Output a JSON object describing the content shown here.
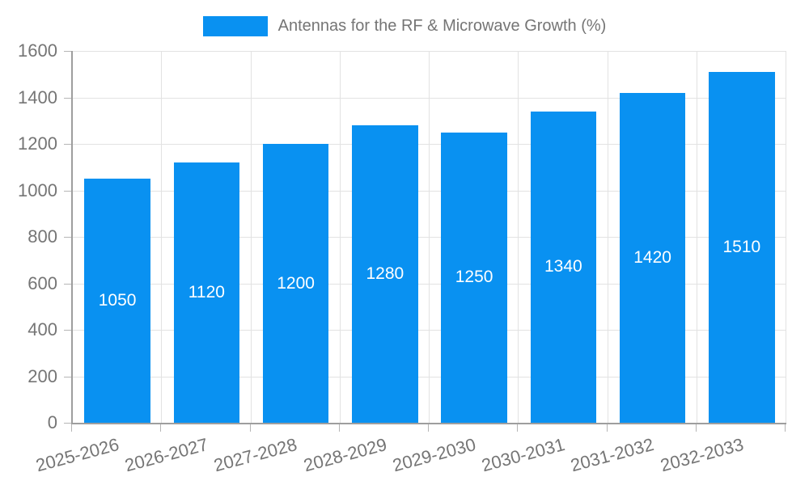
{
  "chart_data": {
    "type": "bar",
    "title": "Antennas for the RF & Microwave Growth (%)",
    "categories": [
      "2025-2026",
      "2026-2027",
      "2027-2028",
      "2028-2029",
      "2029-2030",
      "2030-2031",
      "2031-2032",
      "2032-2033"
    ],
    "values": [
      1050,
      1120,
      1200,
      1280,
      1250,
      1340,
      1420,
      1510
    ],
    "xlabel": "",
    "ylabel": "",
    "ylim": [
      0,
      1600
    ],
    "yticks": [
      0,
      200,
      400,
      600,
      800,
      1000,
      1200,
      1400,
      1600
    ],
    "grid": true,
    "legend_position": "top-center",
    "x_label_rotation_deg": -15,
    "colors": {
      "bar": "#0991f1",
      "value_label": "#ffffff",
      "tick_label": "#757575",
      "gridline": "#e2e2e2",
      "axis": "#9e9e9e"
    }
  }
}
